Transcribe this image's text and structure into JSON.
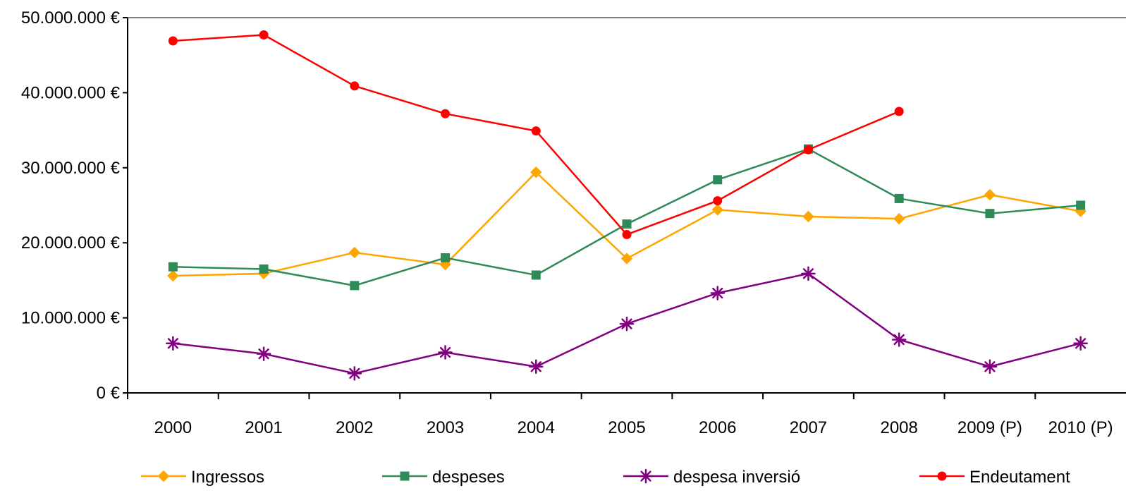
{
  "chart_data": {
    "type": "line",
    "title": "",
    "xlabel": "",
    "ylabel": "",
    "categories": [
      "2000",
      "2001",
      "2002",
      "2003",
      "2004",
      "2005",
      "2006",
      "2007",
      "2008",
      "2009 (P)",
      "2010 (P)"
    ],
    "ylim": [
      0,
      50000000
    ],
    "yticks": [
      {
        "value": 0,
        "label": "0 €"
      },
      {
        "value": 10000000,
        "label": "10.000.000 €"
      },
      {
        "value": 20000000,
        "label": "20.000.000 €"
      },
      {
        "value": 30000000,
        "label": "30.000.000 €"
      },
      {
        "value": 40000000,
        "label": "40.000.000 €"
      },
      {
        "value": 50000000,
        "label": "50.000.000 €"
      }
    ],
    "grid": false,
    "legend_position": "bottom",
    "series": [
      {
        "name": "Ingressos",
        "color": "#FFA500",
        "marker": "diamond",
        "values": [
          15600000,
          15900000,
          18700000,
          17100000,
          29400000,
          17900000,
          24400000,
          23500000,
          23200000,
          26400000,
          24200000
        ]
      },
      {
        "name": "despeses",
        "color": "#2E8B57",
        "marker": "square",
        "values": [
          16800000,
          16500000,
          14300000,
          18000000,
          15700000,
          22500000,
          28400000,
          32500000,
          25900000,
          23900000,
          25000000
        ]
      },
      {
        "name": "despesa inversió",
        "color": "#800080",
        "marker": "asterisk",
        "values": [
          6600000,
          5200000,
          2600000,
          5400000,
          3500000,
          9200000,
          13300000,
          15900000,
          7100000,
          3500000,
          6600000
        ]
      },
      {
        "name": "Endeutament",
        "color": "#FF0000",
        "marker": "circle",
        "values": [
          46900000,
          47700000,
          40900000,
          37200000,
          34900000,
          21100000,
          25600000,
          32400000,
          37500000,
          null,
          null
        ]
      }
    ]
  }
}
